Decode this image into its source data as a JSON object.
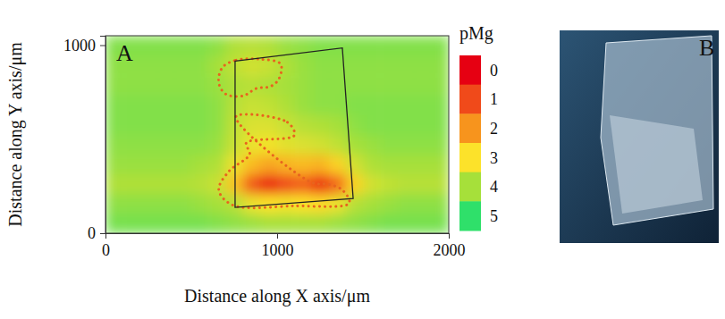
{
  "chart_data": {
    "type": "heatmap",
    "panel_labels": [
      "A",
      "B"
    ],
    "xlabel": "Distance along X axis/μm",
    "ylabel": "Distance along Y axis/μm",
    "xlim": [
      0,
      2000
    ],
    "ylim": [
      0,
      1050
    ],
    "xticks": [
      0,
      1000,
      2000
    ],
    "yticks": [
      0,
      1000
    ],
    "x": [
      50,
      150,
      250,
      350,
      450,
      550,
      650,
      750,
      850,
      950,
      1050,
      1150,
      1250,
      1350,
      1450,
      1550,
      1650,
      1750,
      1850,
      1950
    ],
    "y": [
      52.5,
      157.5,
      262.5,
      367.5,
      472.5,
      577.5,
      682.5,
      787.5,
      892.5,
      997.5
    ],
    "cells": [
      [
        4.4,
        4.4,
        4.4,
        4.4,
        4.4,
        4.4,
        4.3,
        4.2,
        4.1,
        4.0,
        4.0,
        4.0,
        4.0,
        4.1,
        4.2,
        4.3,
        4.4,
        4.4,
        4.4,
        4.4
      ],
      [
        4.2,
        4.2,
        4.2,
        4.2,
        4.2,
        4.1,
        4.0,
        3.8,
        3.2,
        3.0,
        3.1,
        3.0,
        2.9,
        3.2,
        3.8,
        4.0,
        4.1,
        4.2,
        4.2,
        4.2
      ],
      [
        3.9,
        3.9,
        3.9,
        3.9,
        3.9,
        3.8,
        3.6,
        2.6,
        1.2,
        0.4,
        1.0,
        1.3,
        0.6,
        1.4,
        2.8,
        3.5,
        3.7,
        3.8,
        3.8,
        3.8
      ],
      [
        4.1,
        4.1,
        4.1,
        4.1,
        4.1,
        4.0,
        3.9,
        3.2,
        2.5,
        2.2,
        2.4,
        2.5,
        2.4,
        2.8,
        3.5,
        3.9,
        4.0,
        4.0,
        4.0,
        4.0
      ],
      [
        4.2,
        4.2,
        4.2,
        4.2,
        4.2,
        4.2,
        4.1,
        3.6,
        3.2,
        3.1,
        3.3,
        3.4,
        3.5,
        3.7,
        4.0,
        4.1,
        4.2,
        4.2,
        4.2,
        4.2
      ],
      [
        4.3,
        4.3,
        4.3,
        4.3,
        4.3,
        4.3,
        4.2,
        3.7,
        3.4,
        3.4,
        3.6,
        3.8,
        3.9,
        4.0,
        4.2,
        4.3,
        4.3,
        4.3,
        4.3,
        4.3
      ],
      [
        4.3,
        4.3,
        4.3,
        4.3,
        4.3,
        4.3,
        4.2,
        3.8,
        3.6,
        3.7,
        3.9,
        4.1,
        4.2,
        4.2,
        4.3,
        4.3,
        4.3,
        4.3,
        4.3,
        4.3
      ],
      [
        4.2,
        4.2,
        4.2,
        4.2,
        4.2,
        4.2,
        4.1,
        3.9,
        3.8,
        3.9,
        4.0,
        4.1,
        4.2,
        4.2,
        4.2,
        4.2,
        4.2,
        4.2,
        4.2,
        4.2
      ],
      [
        4.2,
        4.2,
        4.2,
        4.2,
        4.2,
        4.2,
        4.0,
        3.7,
        3.5,
        3.6,
        3.9,
        4.1,
        4.2,
        4.2,
        4.2,
        4.2,
        4.2,
        4.2,
        4.2,
        4.2
      ],
      [
        4.3,
        4.3,
        4.3,
        4.3,
        4.3,
        4.3,
        4.2,
        3.9,
        3.8,
        3.9,
        4.1,
        4.2,
        4.3,
        4.3,
        4.3,
        4.3,
        4.3,
        4.3,
        4.3,
        4.3
      ]
    ],
    "colorbar": {
      "title": "pMg",
      "range": [
        0,
        5
      ],
      "ticks": [
        0,
        1,
        2,
        3,
        4,
        5
      ]
    },
    "outline": [
      [
        755,
        915
      ],
      [
        1380,
        985
      ],
      [
        1443,
        184
      ],
      [
        755,
        137
      ]
    ],
    "regions": [
      [
        [
          680,
          880
        ],
        [
          760,
          920
        ],
        [
          900,
          925
        ],
        [
          1020,
          900
        ],
        [
          1010,
          820
        ],
        [
          960,
          780
        ],
        [
          880,
          770
        ],
        [
          800,
          730
        ],
        [
          700,
          740
        ],
        [
          660,
          800
        ]
      ],
      [
        [
          760,
          620
        ],
        [
          1060,
          590
        ],
        [
          1100,
          520
        ],
        [
          820,
          480
        ],
        [
          840,
          420
        ],
        [
          720,
          330
        ],
        [
          660,
          230
        ],
        [
          740,
          150
        ],
        [
          1100,
          145
        ],
        [
          1420,
          160
        ],
        [
          1380,
          230
        ],
        [
          1300,
          260
        ],
        [
          1200,
          270
        ]
      ]
    ]
  }
}
